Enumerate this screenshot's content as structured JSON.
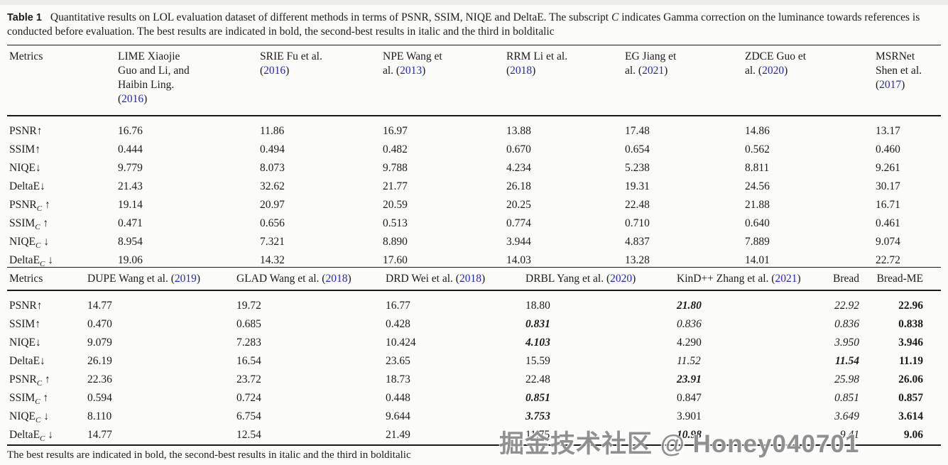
{
  "colors": {
    "citation_blue": "#2424c8",
    "text": "#1b1b1b"
  },
  "caption": {
    "label": "Table 1",
    "part1": "Quantitative results on LOL evaluation dataset of different methods in terms of PSNR, SSIM, NIQE and DeltaE. The subscript ",
    "c": "C",
    "part2": " indicates Gamma correction on the luminance towards references is conducted before evaluation. The best results are indicated in bold, the second-best results in italic and the third in bolditalic"
  },
  "footer_note": "The best results are indicated in bold, the second-best results in italic and the third in bolditalic",
  "watermark": "掘金技术社区 @ Honey040701",
  "table1": {
    "metrics_header": "Metrics",
    "columns": [
      {
        "label": "LIME Xiaojie Guo and Li, and Haibin Ling.",
        "year": "2016"
      },
      {
        "label": "SRIE Fu et al.",
        "year": "2016"
      },
      {
        "label": "NPE Wang et al.",
        "year": "2013"
      },
      {
        "label": "RRM Li et al.",
        "year": "2018"
      },
      {
        "label": "EG Jiang et al.",
        "year": "2021"
      },
      {
        "label": "ZDCE Guo et al.",
        "year": "2020"
      },
      {
        "label": "MSRNet Shen et al.",
        "year": "2017"
      }
    ],
    "rows": [
      {
        "metric": {
          "base": "PSNR",
          "sub": "",
          "arrow": "↑"
        },
        "values": [
          "16.76",
          "11.86",
          "16.97",
          "13.88",
          "17.48",
          "14.86",
          "13.17"
        ]
      },
      {
        "metric": {
          "base": "SSIM",
          "sub": "",
          "arrow": "↑"
        },
        "values": [
          "0.444",
          "0.494",
          "0.482",
          "0.670",
          "0.654",
          "0.562",
          "0.460"
        ]
      },
      {
        "metric": {
          "base": "NIQE",
          "sub": "",
          "arrow": "↓"
        },
        "values": [
          "9.779",
          "8.073",
          "9.788",
          "4.234",
          "5.238",
          "8.811",
          "9.261"
        ]
      },
      {
        "metric": {
          "base": "DeltaE",
          "sub": "",
          "arrow": "↓"
        },
        "values": [
          "21.43",
          "32.62",
          "21.77",
          "26.18",
          "19.31",
          "24.56",
          "30.17"
        ]
      },
      {
        "metric": {
          "base": "PSNR",
          "sub": "C",
          "arrow": "↑"
        },
        "values": [
          "19.14",
          "20.97",
          "20.59",
          "20.25",
          "22.48",
          "21.88",
          "16.71"
        ]
      },
      {
        "metric": {
          "base": "SSIM",
          "sub": "C",
          "arrow": "↑"
        },
        "values": [
          "0.471",
          "0.656",
          "0.513",
          "0.774",
          "0.710",
          "0.640",
          "0.461"
        ]
      },
      {
        "metric": {
          "base": "NIQE",
          "sub": "C",
          "arrow": "↓"
        },
        "values": [
          "8.954",
          "7.321",
          "8.890",
          "3.944",
          "4.837",
          "7.889",
          "9.074"
        ]
      },
      {
        "metric": {
          "base": "DeltaE",
          "sub": "C",
          "arrow": "↓"
        },
        "values": [
          "19.06",
          "14.32",
          "17.60",
          "14.03",
          "13.28",
          "14.01",
          "22.72"
        ]
      }
    ]
  },
  "table2": {
    "metrics_header": "Metrics",
    "columns": [
      {
        "label": "DUPE Wang et al.",
        "year": "2019"
      },
      {
        "label": "GLAD Wang et al.",
        "year": "2018"
      },
      {
        "label": "DRD Wei et al.",
        "year": "2018"
      },
      {
        "label": "DRBL Yang et al.",
        "year": "2020"
      },
      {
        "label": "KinD++ Zhang et al.",
        "year": "2021"
      },
      {
        "label": "Bread",
        "year": ""
      },
      {
        "label": "Bread-ME",
        "year": ""
      }
    ],
    "rows": [
      {
        "metric": {
          "base": "PSNR",
          "sub": "",
          "arrow": "↑"
        },
        "values": [
          [
            "14.77",
            ""
          ],
          [
            "19.72",
            ""
          ],
          [
            "16.77",
            ""
          ],
          [
            "18.80",
            ""
          ],
          [
            "21.80",
            "bi"
          ],
          [
            "22.92",
            "i"
          ],
          [
            "22.96",
            "b"
          ]
        ]
      },
      {
        "metric": {
          "base": "SSIM",
          "sub": "",
          "arrow": "↑"
        },
        "values": [
          [
            "0.470",
            ""
          ],
          [
            "0.685",
            ""
          ],
          [
            "0.428",
            ""
          ],
          [
            "0.831",
            "bi"
          ],
          [
            "0.836",
            "i"
          ],
          [
            "0.836",
            "i"
          ],
          [
            "0.838",
            "b"
          ]
        ]
      },
      {
        "metric": {
          "base": "NIQE",
          "sub": "",
          "arrow": "↓"
        },
        "values": [
          [
            "9.079",
            ""
          ],
          [
            "7.283",
            ""
          ],
          [
            "10.424",
            ""
          ],
          [
            "4.103",
            "bi"
          ],
          [
            "4.290",
            ""
          ],
          [
            "3.950",
            "i"
          ],
          [
            "3.946",
            "b"
          ]
        ]
      },
      {
        "metric": {
          "base": "DeltaE",
          "sub": "",
          "arrow": "↓"
        },
        "values": [
          [
            "26.19",
            ""
          ],
          [
            "16.54",
            ""
          ],
          [
            "23.65",
            ""
          ],
          [
            "15.59",
            ""
          ],
          [
            "11.52",
            "i"
          ],
          [
            "11.54",
            "bi"
          ],
          [
            "11.19",
            "b"
          ]
        ]
      },
      {
        "metric": {
          "base": "PSNR",
          "sub": "C",
          "arrow": "↑"
        },
        "values": [
          [
            "22.36",
            ""
          ],
          [
            "23.72",
            ""
          ],
          [
            "18.73",
            ""
          ],
          [
            "22.48",
            ""
          ],
          [
            "23.91",
            "bi"
          ],
          [
            "25.98",
            "i"
          ],
          [
            "26.06",
            "b"
          ]
        ]
      },
      {
        "metric": {
          "base": "SSIM",
          "sub": "C",
          "arrow": "↑"
        },
        "values": [
          [
            "0.594",
            ""
          ],
          [
            "0.724",
            ""
          ],
          [
            "0.448",
            ""
          ],
          [
            "0.851",
            "bi"
          ],
          [
            "0.847",
            ""
          ],
          [
            "0.851",
            "i"
          ],
          [
            "0.857",
            "b"
          ]
        ]
      },
      {
        "metric": {
          "base": "NIQE",
          "sub": "C",
          "arrow": "↓"
        },
        "values": [
          [
            "8.110",
            ""
          ],
          [
            "6.754",
            ""
          ],
          [
            "9.644",
            ""
          ],
          [
            "3.753",
            "bi"
          ],
          [
            "3.901",
            ""
          ],
          [
            "3.649",
            "i"
          ],
          [
            "3.614",
            "b"
          ]
        ]
      },
      {
        "metric": {
          "base": "DeltaE",
          "sub": "C",
          "arrow": "↓"
        },
        "values": [
          [
            "14.77",
            ""
          ],
          [
            "12.54",
            ""
          ],
          [
            "21.49",
            ""
          ],
          [
            "11.75",
            ""
          ],
          [
            "10.98",
            "bi"
          ],
          [
            "9.41",
            "i"
          ],
          [
            "9.06",
            "b"
          ]
        ]
      }
    ]
  }
}
